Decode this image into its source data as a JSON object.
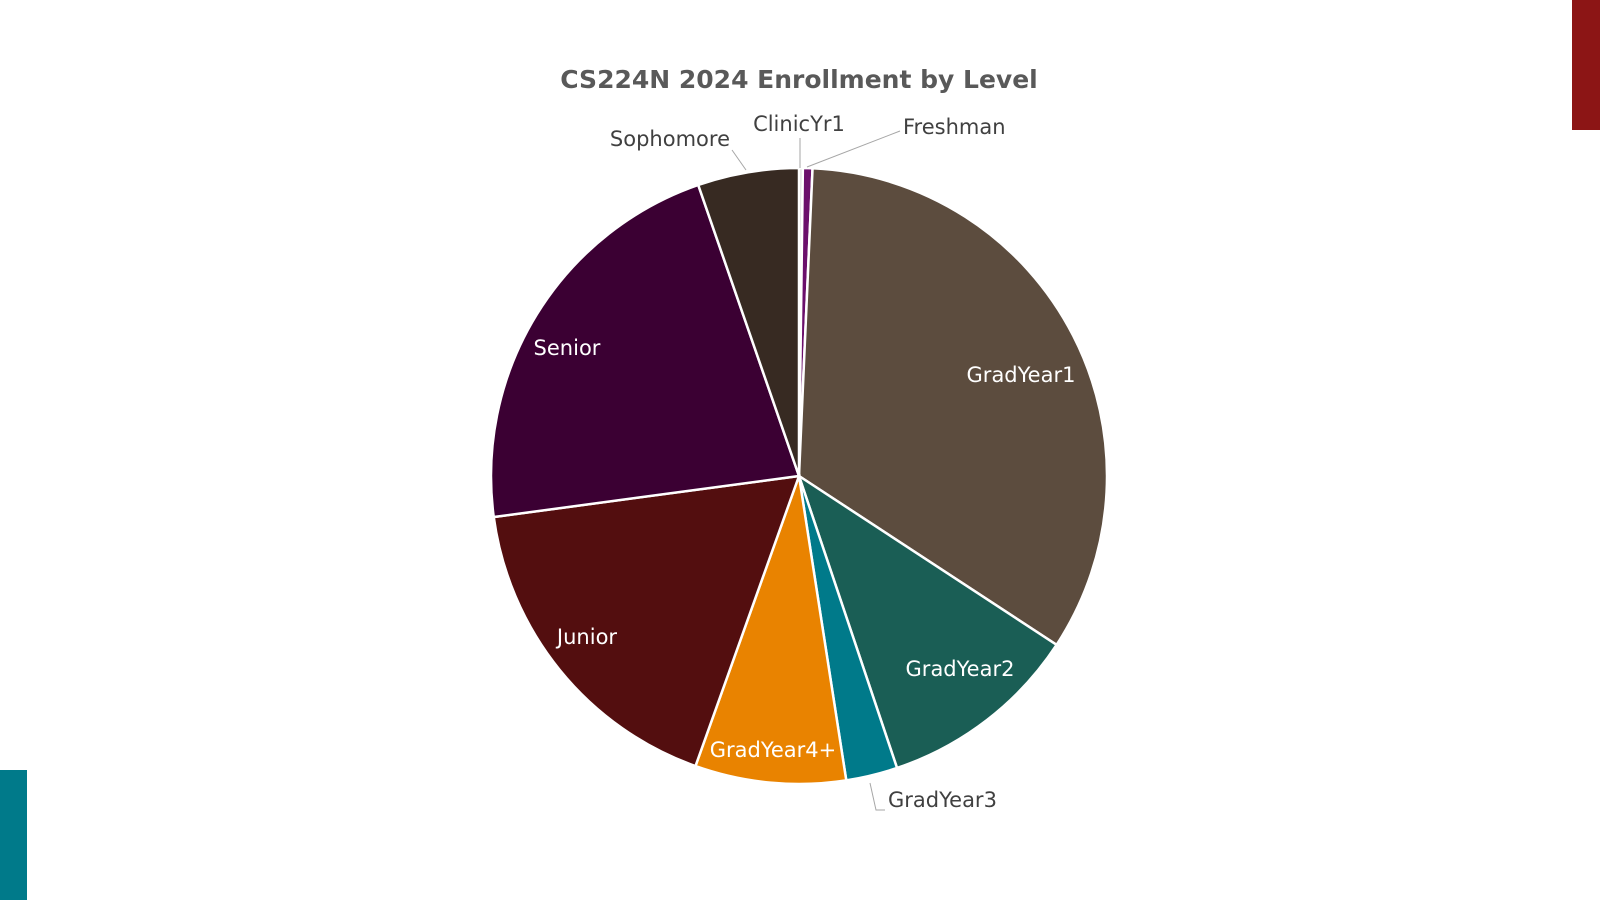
{
  "chart_data": {
    "type": "pie",
    "title": "CS224N 2024 Enrollment by Level",
    "categories": [
      "ClinicYr1",
      "Freshman",
      "GradYear1",
      "GradYear2",
      "GradYear3",
      "GradYear4+",
      "Junior",
      "Senior",
      "Sophomore"
    ],
    "values": [
      0.2,
      0.5,
      33.5,
      10.6,
      2.7,
      7.9,
      17.4,
      21.8,
      5.3
    ],
    "colors": [
      "#d9d9d9",
      "#6b0f6b",
      "#5c4c3e",
      "#1a5e55",
      "#007a8a",
      "#e98300",
      "#530e0f",
      "#3b0033",
      "#372a22"
    ]
  }
}
